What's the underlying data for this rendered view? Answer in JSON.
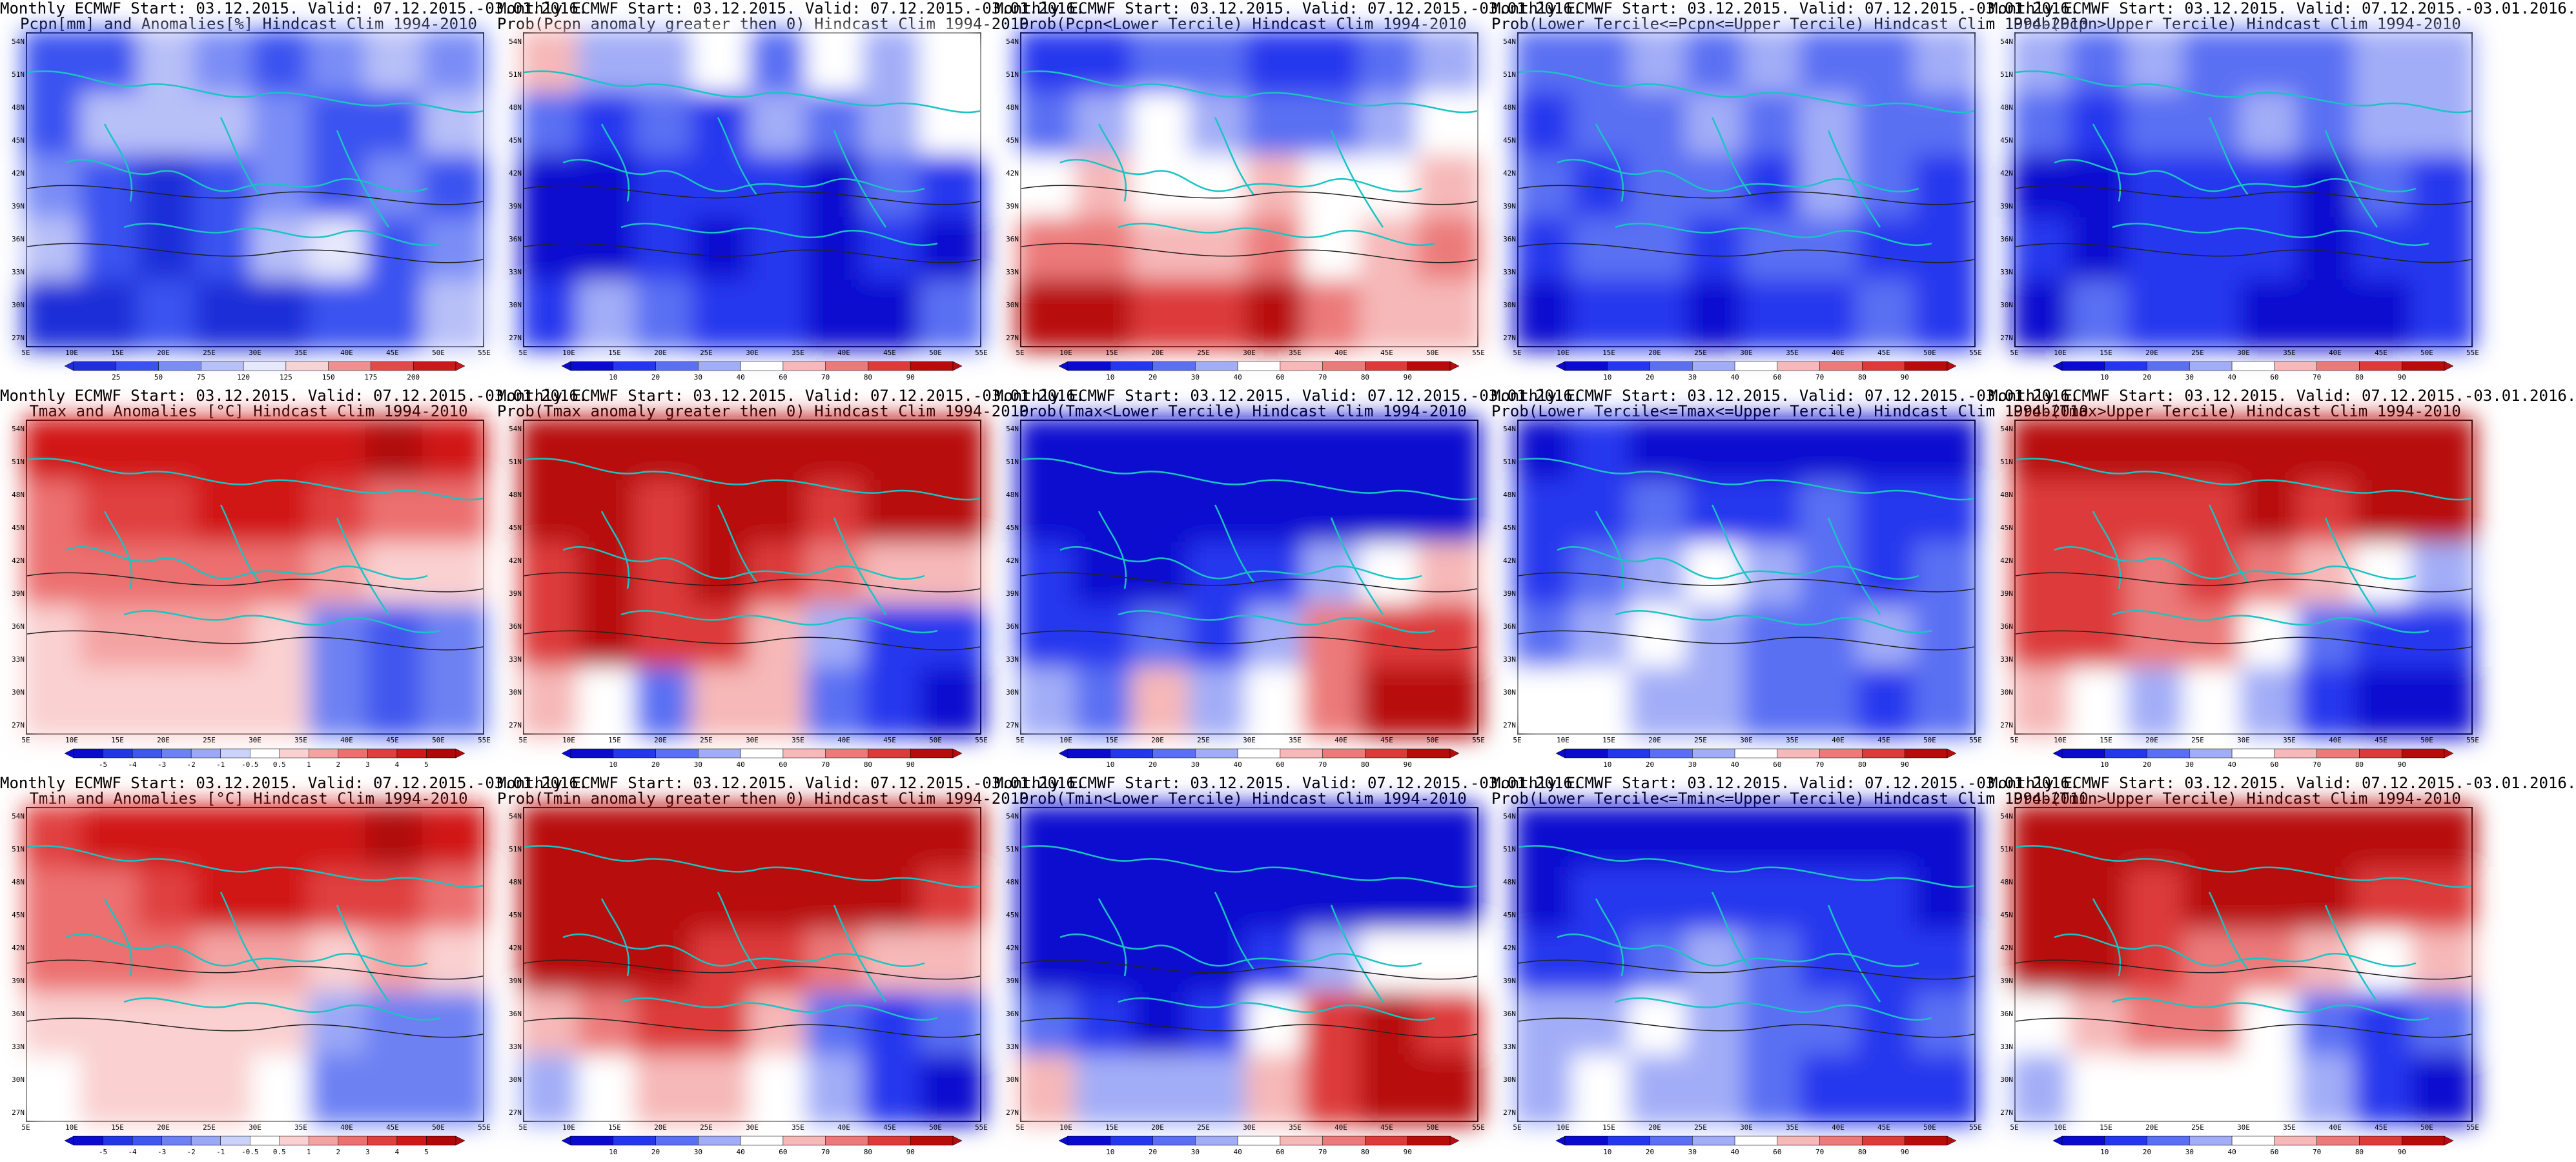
{
  "lat_labels": [
    "54N",
    "51N",
    "48N",
    "45N",
    "42N",
    "39N",
    "36N",
    "33N",
    "30N",
    "27N"
  ],
  "lon_labels": [
    "5E",
    "10E",
    "15E",
    "20E",
    "25E",
    "30E",
    "35E",
    "40E",
    "45E",
    "50E",
    "55E"
  ],
  "colorbars": {
    "precip": {
      "labels": [
        "25",
        "50",
        "75",
        "120",
        "125",
        "150",
        "175",
        "200"
      ],
      "colors": [
        "#1f2fd8",
        "#3a52f0",
        "#7a8df6",
        "#b8c0f8",
        "#e6e8fb",
        "#f6d4d4",
        "#f08f8f",
        "#e24a4a",
        "#c71a1a"
      ]
    },
    "prob": {
      "labels": [
        "10",
        "20",
        "30",
        "40",
        "60",
        "70",
        "80",
        "90"
      ],
      "colors": [
        "#0b0bd0",
        "#2537ee",
        "#5a6ff3",
        "#a2adf7",
        "#ffffff",
        "#f6b8b8",
        "#ec7a7a",
        "#dd3a3a",
        "#b80b0b"
      ]
    },
    "temp": {
      "labels": [
        "-5",
        "-4",
        "-3",
        "-2",
        "-1",
        "-0.5",
        "0.5",
        "1",
        "2",
        "3",
        "4",
        "5"
      ],
      "colors": [
        "#0b0bd0",
        "#2236e6",
        "#3f56ef",
        "#6d81f3",
        "#9aa8f6",
        "#ccd3fa",
        "#ffffff",
        "#fad0d0",
        "#f4a3a3",
        "#ec7070",
        "#e03f3f",
        "#d11818",
        "#b00808"
      ]
    }
  },
  "panels": [
    {
      "line1": "Monthly ECMWF Start: 03.12.2015. Valid: 07.12.2015.-03.01.2016.",
      "line2": "Pcpn[mm] and Anomalies[%] Hindcast Clim 1994-2010",
      "scale": "precip",
      "field": [
        -0.6,
        -0.7,
        -0.3,
        -0.4,
        -0.7,
        -0.4,
        -0.2,
        -0.5,
        -0.6,
        -0.3,
        -0.3,
        -0.2,
        -0.5,
        -0.7,
        -0.6,
        -0.3,
        -0.5,
        -0.6,
        -0.8,
        -0.6,
        -0.5,
        -0.7,
        -0.5,
        -0.6,
        -0.2,
        -0.6,
        -0.8,
        -0.7,
        -0.2,
        0.1,
        -0.6,
        -0.5,
        -0.9,
        -0.8,
        -0.7,
        -0.8,
        -0.8,
        -0.7,
        -0.6,
        -0.3
      ]
    },
    {
      "line1": "Monthly ECMWF Start: 03.12.2015. Valid: 07.12.2015.-03.01.2016.",
      "line2": "Prob(Pcpn anomaly greater then 0) Hindcast Clim 1994-2010",
      "scale": "prob",
      "field": [
        0.3,
        -0.2,
        -0.3,
        -0.1,
        -0.4,
        -0.1,
        -0.3,
        -0.1,
        -0.5,
        -0.6,
        -0.4,
        -0.6,
        -0.3,
        -0.5,
        -0.3,
        -0.1,
        -0.8,
        -0.9,
        -0.6,
        -0.7,
        -0.6,
        -0.9,
        -0.5,
        -0.7,
        -0.8,
        -0.9,
        -0.6,
        -0.8,
        -0.7,
        -0.9,
        -0.6,
        -0.8,
        -0.7,
        -0.2,
        -0.4,
        -0.6,
        -0.7,
        -0.9,
        -0.8,
        -0.5
      ]
    },
    {
      "line1": "Monthly ECMWF Start: 03.12.2015. Valid: 07.12.2015.-03.01.2016.",
      "line2": "Prob(Pcpn<Lower Tercile) Hindcast Clim 1994-2010",
      "scale": "prob",
      "field": [
        -0.7,
        -0.6,
        -0.4,
        -0.5,
        -0.7,
        -0.6,
        -0.5,
        -0.3,
        -0.4,
        -0.2,
        -0.1,
        -0.3,
        -0.5,
        -0.4,
        -0.2,
        0.0,
        0.1,
        0.2,
        0.0,
        0.1,
        0.3,
        0.1,
        -0.1,
        0.2,
        0.5,
        0.4,
        0.2,
        0.3,
        0.4,
        0.1,
        0.2,
        0.4,
        0.9,
        0.8,
        0.7,
        0.6,
        0.8,
        0.5,
        0.3,
        0.2
      ]
    },
    {
      "line1": "Monthly ECMWF Start: 03.12.2015. Valid: 07.12.2015.-03.01.2016.",
      "line2": "Prob(Lower Tercile<=Pcpn<=Upper Tercile) Hindcast Clim 1994-2010",
      "scale": "prob",
      "field": [
        -0.4,
        -0.5,
        -0.3,
        -0.4,
        -0.3,
        -0.5,
        -0.4,
        -0.3,
        -0.6,
        -0.4,
        -0.5,
        -0.3,
        -0.4,
        -0.2,
        -0.4,
        -0.5,
        -0.5,
        -0.6,
        -0.4,
        -0.5,
        -0.6,
        -0.3,
        -0.5,
        -0.6,
        -0.6,
        -0.4,
        -0.5,
        -0.6,
        -0.4,
        -0.5,
        -0.7,
        -0.6,
        -0.8,
        -0.7,
        -0.6,
        -0.8,
        -0.6,
        -0.7,
        -0.5,
        -0.6
      ]
    },
    {
      "line1": "Monthly ECMWF Start: 03.12.2015. Valid: 07.12.2015.-03.01.2016.",
      "line2": "Prob(Pcpn>Upper Tercile) Hindcast Clim 1994-2010",
      "scale": "prob",
      "field": [
        -0.3,
        -0.5,
        -0.3,
        -0.4,
        -0.5,
        -0.4,
        -0.3,
        -0.2,
        -0.5,
        -0.6,
        -0.4,
        -0.5,
        -0.3,
        -0.4,
        -0.3,
        -0.2,
        -0.8,
        -0.9,
        -0.6,
        -0.7,
        -0.6,
        -0.8,
        -0.5,
        -0.7,
        -0.7,
        -0.8,
        -0.6,
        -0.7,
        -0.6,
        -0.8,
        -0.6,
        -0.7,
        -0.8,
        -0.5,
        -0.6,
        -0.7,
        -0.8,
        -0.9,
        -0.8,
        -0.6
      ]
    },
    {
      "line1": "Monthly ECMWF Start: 03.12.2015. Valid: 07.12.2015.-03.01.2016.",
      "line2": "Tmax and Anomalies [°C] Hindcast Clim 1994-2010",
      "scale": "temp",
      "field": [
        0.7,
        0.8,
        0.8,
        0.8,
        0.8,
        0.8,
        0.9,
        0.8,
        0.5,
        0.6,
        0.6,
        0.7,
        0.7,
        0.6,
        0.5,
        0.4,
        0.4,
        0.5,
        0.4,
        0.5,
        0.4,
        0.3,
        0.2,
        0.1,
        0.2,
        0.3,
        0.3,
        0.3,
        0.1,
        -0.4,
        -0.6,
        -0.5,
        0.1,
        0.1,
        0.2,
        0.2,
        0.1,
        -0.5,
        -0.6,
        -0.5
      ]
    },
    {
      "line1": "Monthly ECMWF Start: 03.12.2015. Valid: 07.12.2015.-03.01.2016.",
      "line2": "Prob(Tmax anomaly greater then 0) Hindcast Clim 1994-2010",
      "scale": "prob",
      "field": [
        0.9,
        0.9,
        0.9,
        0.9,
        0.9,
        0.9,
        0.9,
        0.8,
        0.8,
        0.8,
        0.7,
        0.8,
        0.8,
        0.7,
        0.8,
        0.9,
        0.7,
        0.8,
        0.7,
        0.8,
        0.6,
        0.5,
        0.3,
        0.2,
        0.6,
        0.8,
        0.7,
        0.6,
        0.3,
        -0.3,
        -0.6,
        -0.7,
        0.2,
        0.1,
        -0.4,
        0.3,
        0.2,
        -0.4,
        -0.7,
        -0.8
      ]
    },
    {
      "line1": "Monthly ECMWF Start: 03.12.2015. Valid: 07.12.2015.-03.01.2016.",
      "line2": "Prob(Tmax<Lower Tercile) Hindcast Clim 1994-2010",
      "scale": "prob",
      "field": [
        -0.9,
        -0.9,
        -0.9,
        -0.9,
        -0.9,
        -0.9,
        -0.9,
        -0.9,
        -0.8,
        -0.9,
        -0.9,
        -0.8,
        -0.9,
        -0.9,
        -0.8,
        -0.8,
        -0.7,
        -0.8,
        -0.8,
        -0.7,
        -0.6,
        -0.3,
        0.1,
        0.2,
        -0.7,
        -0.6,
        -0.5,
        -0.6,
        -0.2,
        0.4,
        0.7,
        0.6,
        -0.3,
        -0.4,
        0.2,
        -0.3,
        0.1,
        0.5,
        0.8,
        0.8
      ]
    },
    {
      "line1": "Monthly ECMWF Start: 03.12.2015. Valid: 07.12.2015.-03.01.2016.",
      "line2": "Prob(Lower Tercile<=Tmax<=Upper Tercile) Hindcast Clim 1994-2010",
      "scale": "prob",
      "field": [
        -0.8,
        -0.7,
        -0.8,
        -0.9,
        -0.8,
        -0.9,
        -0.8,
        -0.9,
        -0.7,
        -0.6,
        -0.5,
        -0.7,
        -0.6,
        -0.5,
        -0.6,
        -0.7,
        -0.6,
        -0.5,
        -0.2,
        -0.1,
        -0.3,
        -0.5,
        -0.6,
        -0.5,
        -0.4,
        -0.3,
        -0.1,
        -0.2,
        -0.4,
        -0.5,
        -0.3,
        -0.4,
        -0.1,
        0.0,
        -0.2,
        -0.3,
        -0.5,
        -0.4,
        -0.6,
        -0.5
      ]
    },
    {
      "line1": "Monthly ECMWF Start: 03.12.2015. Valid: 07.12.2015.-03.01.2016.",
      "line2": "Prob(Tmax>Upper Tercile) Hindcast Clim 1994-2010",
      "scale": "prob",
      "field": [
        0.8,
        0.8,
        0.8,
        0.9,
        0.9,
        0.9,
        0.9,
        0.8,
        0.7,
        0.7,
        0.6,
        0.7,
        0.8,
        0.7,
        0.8,
        0.9,
        0.6,
        0.7,
        0.5,
        0.6,
        0.5,
        0.2,
        0.1,
        -0.2,
        0.6,
        0.6,
        0.5,
        0.4,
        0.0,
        -0.5,
        -0.7,
        -0.7,
        0.2,
        0.0,
        -0.3,
        0.1,
        -0.2,
        -0.6,
        -0.8,
        -0.9
      ]
    },
    {
      "line1": "Monthly ECMWF Start: 03.12.2015. Valid: 07.12.2015.-03.01.2016.",
      "line2": "Tmin and Anomalies [°C] Hindcast Clim 1994-2010",
      "scale": "temp",
      "field": [
        0.6,
        0.7,
        0.8,
        0.8,
        0.8,
        0.8,
        0.9,
        0.8,
        0.5,
        0.5,
        0.6,
        0.7,
        0.7,
        0.6,
        0.6,
        0.5,
        0.4,
        0.4,
        0.4,
        0.3,
        0.3,
        0.2,
        0.3,
        0.2,
        0.1,
        0.1,
        0.2,
        0.2,
        0.1,
        -0.3,
        -0.5,
        -0.4,
        0.0,
        0.1,
        0.1,
        0.1,
        0.0,
        -0.4,
        -0.5,
        -0.4
      ]
    },
    {
      "line1": "Monthly ECMWF Start: 03.12.2015. Valid: 07.12.2015.-03.01.2016.",
      "line2": "Prob(Tmin anomaly greater then 0) Hindcast Clim 1994-2010",
      "scale": "prob",
      "field": [
        0.8,
        0.9,
        0.9,
        0.9,
        0.9,
        0.9,
        0.9,
        0.8,
        0.9,
        0.9,
        0.8,
        0.8,
        0.9,
        0.9,
        0.8,
        0.7,
        0.9,
        0.9,
        0.8,
        0.7,
        0.6,
        0.4,
        0.2,
        0.3,
        0.2,
        0.5,
        0.7,
        0.6,
        0.2,
        -0.4,
        -0.6,
        -0.5,
        -0.2,
        0.1,
        0.2,
        0.2,
        0.1,
        -0.3,
        -0.6,
        -0.8
      ]
    },
    {
      "line1": "Monthly ECMWF Start: 03.12.2015. Valid: 07.12.2015.-03.01.2016.",
      "line2": "Prob(Tmin<Lower Tercile) Hindcast Clim 1994-2010",
      "scale": "prob",
      "field": [
        -0.9,
        -0.9,
        -0.9,
        -0.9,
        -0.9,
        -0.9,
        -0.9,
        -0.9,
        -0.9,
        -0.9,
        -0.9,
        -0.8,
        -0.9,
        -0.9,
        -0.9,
        -0.9,
        -0.9,
        -0.9,
        -0.8,
        -0.8,
        -0.6,
        -0.3,
        0.1,
        0.0,
        -0.4,
        -0.7,
        -0.8,
        -0.7,
        -0.1,
        0.6,
        0.8,
        0.7,
        0.3,
        -0.2,
        -0.3,
        -0.2,
        0.2,
        0.7,
        0.9,
        0.9
      ]
    },
    {
      "line1": "Monthly ECMWF Start: 03.12.2015. Valid: 07.12.2015.-03.01.2016.",
      "line2": "Prob(Lower Tercile<=Tmin<=Upper Tercile) Hindcast Clim 1994-2010",
      "scale": "prob",
      "field": [
        -0.8,
        -0.9,
        -0.9,
        -0.9,
        -0.9,
        -0.9,
        -0.9,
        -0.9,
        -0.8,
        -0.7,
        -0.6,
        -0.7,
        -0.7,
        -0.6,
        -0.7,
        -0.8,
        -0.7,
        -0.6,
        -0.4,
        -0.3,
        -0.4,
        -0.6,
        -0.7,
        -0.6,
        -0.3,
        -0.2,
        -0.1,
        -0.3,
        -0.4,
        -0.5,
        -0.6,
        -0.5,
        -0.3,
        -0.1,
        -0.3,
        -0.2,
        -0.5,
        -0.6,
        -0.7,
        -0.7
      ]
    },
    {
      "line1": "Monthly ECMWF Start: 03.12.2015. Valid: 07.12.2015.-03.01.2016.",
      "line2": "Prob(Tmin>Upper Tercile) Hindcast Clim 1994-2010",
      "scale": "prob",
      "field": [
        0.8,
        0.9,
        0.9,
        0.9,
        0.9,
        0.9,
        0.9,
        0.8,
        0.8,
        0.8,
        0.7,
        0.8,
        0.8,
        0.8,
        0.7,
        0.6,
        0.8,
        0.8,
        0.6,
        0.5,
        0.4,
        0.3,
        0.1,
        0.2,
        0.1,
        0.3,
        0.5,
        0.5,
        0.1,
        -0.4,
        -0.6,
        -0.5,
        -0.3,
        0.0,
        0.1,
        0.1,
        0.0,
        -0.3,
        -0.6,
        -0.8
      ]
    }
  ]
}
